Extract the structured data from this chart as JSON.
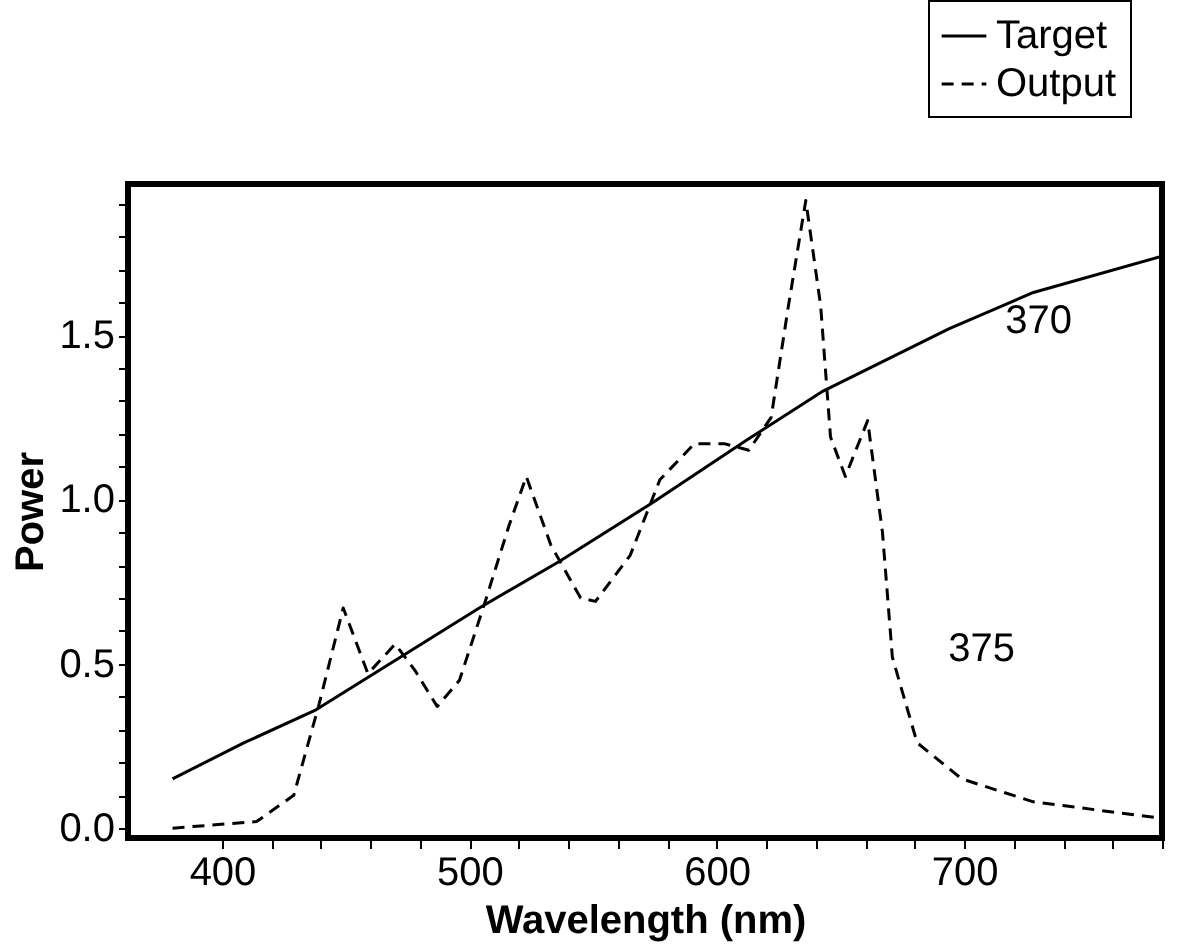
{
  "chart_data": {
    "type": "line",
    "xlabel": "Wavelength (nm)",
    "ylabel": "Power",
    "xlim": [
      362,
      780
    ],
    "ylim": [
      -0.03,
      1.96
    ],
    "xticks": [
      400,
      {
        "value": 420,
        "label": null
      },
      {
        "value": 440,
        "label": null
      },
      {
        "value": 460,
        "label": null
      },
      {
        "value": 480,
        "label": null
      },
      500,
      {
        "value": 520,
        "label": null
      },
      {
        "value": 540,
        "label": null
      },
      {
        "value": 560,
        "label": null
      },
      {
        "value": 580,
        "label": null
      },
      600,
      {
        "value": 620,
        "label": null
      },
      {
        "value": 640,
        "label": null
      },
      {
        "value": 660,
        "label": null
      },
      {
        "value": 680,
        "label": null
      },
      700,
      {
        "value": 720,
        "label": null
      },
      {
        "value": 740,
        "label": null
      },
      {
        "value": 760,
        "label": null
      },
      {
        "value": 780,
        "label": null
      }
    ],
    "yticks": [
      {
        "value": 0,
        "label": "0.0"
      },
      {
        "value": 0.1,
        "label": null
      },
      {
        "value": 0.2,
        "label": null
      },
      {
        "value": 0.3,
        "label": null
      },
      {
        "value": 0.4,
        "label": null
      },
      {
        "value": 0.5,
        "label": "0.5"
      },
      {
        "value": 0.6,
        "label": null
      },
      {
        "value": 0.7,
        "label": null
      },
      {
        "value": 0.8,
        "label": null
      },
      {
        "value": 0.9,
        "label": null
      },
      {
        "value": 1.0,
        "label": "1.0"
      },
      {
        "value": 1.1,
        "label": null
      },
      {
        "value": 1.2,
        "label": null
      },
      {
        "value": 1.3,
        "label": null
      },
      {
        "value": 1.4,
        "label": null
      },
      {
        "value": 1.5,
        "label": "1.5"
      },
      {
        "value": 1.6,
        "label": null
      },
      {
        "value": 1.7,
        "label": null
      },
      {
        "value": 1.8,
        "label": null
      },
      {
        "value": 1.9,
        "label": null
      }
    ],
    "grid": false,
    "legend": "top right",
    "marker": "none",
    "series": [
      {
        "name": "Target",
        "color": "#000000",
        "line_style": "solid",
        "x": [
          380,
          409,
          438,
          504,
          536,
          574,
          612,
          643,
          694,
          728,
          780
        ],
        "values": [
          0.15,
          0.26,
          0.36,
          0.67,
          0.81,
          0.99,
          1.18,
          1.33,
          1.52,
          1.63,
          1.74
        ]
      },
      {
        "name": "Output",
        "color": "#000000",
        "line_style": "dashed",
        "x": [
          380,
          414,
          429,
          439,
          449,
          459,
          470,
          478,
          487,
          496,
          506,
          516,
          523,
          533,
          545,
          551,
          565,
          577,
          591,
          603,
          613,
          622,
          629,
          636,
          642,
          646,
          652,
          661,
          667,
          671,
          681,
          699,
          728,
          780
        ],
        "values": [
          0.0,
          0.02,
          0.1,
          0.37,
          0.67,
          0.47,
          0.56,
          0.48,
          0.37,
          0.45,
          0.68,
          0.92,
          1.07,
          0.86,
          0.7,
          0.69,
          0.83,
          1.06,
          1.17,
          1.17,
          1.15,
          1.25,
          1.59,
          1.91,
          1.59,
          1.19,
          1.07,
          1.24,
          0.9,
          0.52,
          0.26,
          0.15,
          0.08,
          0.03
        ]
      }
    ],
    "annotations": [
      {
        "text": "370",
        "x": 694,
        "y": 1.52
      },
      {
        "text": "375",
        "x": 671,
        "y": 0.52
      }
    ]
  }
}
